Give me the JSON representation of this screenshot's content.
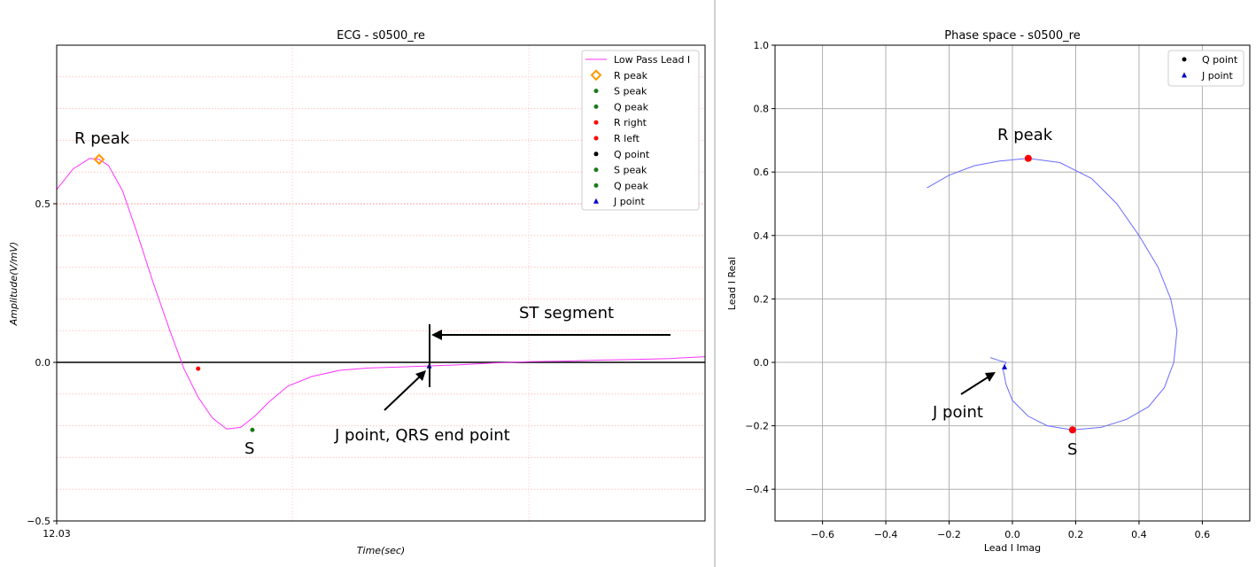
{
  "chart_data": [
    {
      "type": "line",
      "title": "ECG - s0500_re",
      "xlabel": "Time(sec)",
      "ylabel": "Amplitude(V/mV)",
      "xlim": [
        12.03,
        12.305
      ],
      "ylim": [
        -0.5,
        1.0
      ],
      "x_ticks": [
        "12.03"
      ],
      "y_ticks": [
        -0.5,
        0.0,
        0.5
      ],
      "grid": "dotted",
      "legend_position": "top-right",
      "series": [
        {
          "name": "Low Pass Lead I",
          "color": "#ff00ff",
          "x": [
            12.03,
            12.037,
            12.044,
            12.048,
            12.052,
            12.058,
            12.064,
            12.071,
            12.078,
            12.084,
            12.09,
            12.096,
            12.102,
            12.108,
            12.114,
            12.12,
            12.128,
            12.138,
            12.15,
            12.162,
            12.174,
            12.186,
            12.2,
            12.215,
            12.23,
            12.245,
            12.26,
            12.275,
            12.29,
            12.305
          ],
          "y": [
            0.545,
            0.61,
            0.643,
            0.64,
            0.62,
            0.54,
            0.41,
            0.25,
            0.1,
            -0.02,
            -0.11,
            -0.175,
            -0.21,
            -0.205,
            -0.17,
            -0.125,
            -0.075,
            -0.045,
            -0.025,
            -0.018,
            -0.015,
            -0.012,
            -0.008,
            -0.002,
            0.002,
            0.004,
            0.007,
            0.009,
            0.012,
            0.018
          ]
        }
      ],
      "markers": [
        {
          "name": "R peak",
          "x": 12.048,
          "y": 0.64,
          "color": "#ff9900",
          "shape": "diamond"
        },
        {
          "name": "S peak",
          "x": 12.113,
          "y": -0.213,
          "color": "#1a7a1a",
          "shape": "dot"
        },
        {
          "name": "R right",
          "x": 12.09,
          "y": -0.02,
          "color": "#ff0000",
          "shape": "dot"
        },
        {
          "name": "J point",
          "x": 12.188,
          "y": -0.012,
          "color": "#0000cc",
          "shape": "triangle"
        }
      ],
      "legend": [
        "Low Pass Lead I",
        "R peak",
        "S peak",
        "Q peak",
        "R right",
        "R left",
        "Q point",
        "S peak",
        "Q peak",
        "J point"
      ],
      "annotations": {
        "r_peak": "R peak",
        "s": "S",
        "st_segment": "ST segment",
        "j_point": "J point, QRS end point"
      }
    },
    {
      "type": "line",
      "title": "Phase space - s0500_re",
      "xlabel": "Lead I Imag",
      "ylabel": "Lead I Real",
      "xlim": [
        -0.75,
        0.75
      ],
      "ylim": [
        -0.5,
        1.0
      ],
      "x_ticks": [
        -0.6,
        -0.4,
        -0.2,
        0.0,
        0.2,
        0.4,
        0.6
      ],
      "y_ticks": [
        -0.4,
        -0.2,
        0.0,
        0.2,
        0.4,
        0.6,
        0.8,
        1.0
      ],
      "grid": true,
      "legend_position": "top-right",
      "series": [
        {
          "name": "",
          "color": "#6b6bff",
          "x": [
            -0.27,
            -0.2,
            -0.12,
            -0.04,
            0.05,
            0.15,
            0.25,
            0.33,
            0.4,
            0.46,
            0.5,
            0.52,
            0.51,
            0.48,
            0.43,
            0.36,
            0.28,
            0.19,
            0.11,
            0.05,
            0.0,
            -0.02,
            -0.03,
            -0.02,
            -0.04,
            -0.07
          ],
          "y": [
            0.55,
            0.59,
            0.62,
            0.635,
            0.643,
            0.63,
            0.58,
            0.5,
            0.4,
            0.3,
            0.2,
            0.1,
            0.0,
            -0.08,
            -0.14,
            -0.18,
            -0.205,
            -0.213,
            -0.2,
            -0.17,
            -0.12,
            -0.07,
            -0.02,
            0.0,
            0.005,
            0.015
          ]
        }
      ],
      "markers": [
        {
          "name": "R peak",
          "x": 0.05,
          "y": 0.643,
          "color": "#ff0000",
          "shape": "dot"
        },
        {
          "name": "S",
          "x": 0.19,
          "y": -0.213,
          "color": "#ff0000",
          "shape": "dot"
        },
        {
          "name": "J point",
          "x": -0.025,
          "y": -0.015,
          "color": "#0000cc",
          "shape": "triangle"
        }
      ],
      "legend": [
        "Q point",
        "J point"
      ],
      "annotations": {
        "r_peak": "R peak",
        "s": "S",
        "j_point": "J point"
      }
    }
  ]
}
